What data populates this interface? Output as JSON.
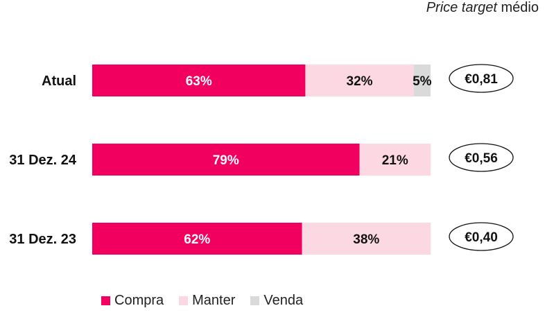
{
  "header": {
    "italic": "Price target",
    "rest": "médio"
  },
  "colors": {
    "compra": "#F20060",
    "manter": "#FCD9E2",
    "venda": "#DADADA"
  },
  "chart_data": {
    "type": "bar",
    "orientation": "horizontal",
    "stacked": true,
    "percent": true,
    "categories": [
      "Atual",
      "31 Dez. 24",
      "31 Dez. 23"
    ],
    "series": [
      {
        "name": "Compra",
        "values": [
          63,
          79,
          62
        ],
        "labels": [
          "63%",
          "79%",
          "62%"
        ],
        "color": "#F20060"
      },
      {
        "name": "Manter",
        "values": [
          32,
          21,
          38
        ],
        "labels": [
          "32%",
          "21%",
          "38%"
        ],
        "color": "#FCD9E2"
      },
      {
        "name": "Venda",
        "values": [
          5,
          0,
          0
        ],
        "labels": [
          "5%",
          "",
          ""
        ],
        "color": "#DADADA"
      }
    ],
    "price_targets": [
      "€0,81",
      "€0,56",
      "€0,40"
    ],
    "xlim": [
      0,
      100
    ],
    "legend_position": "bottom"
  }
}
